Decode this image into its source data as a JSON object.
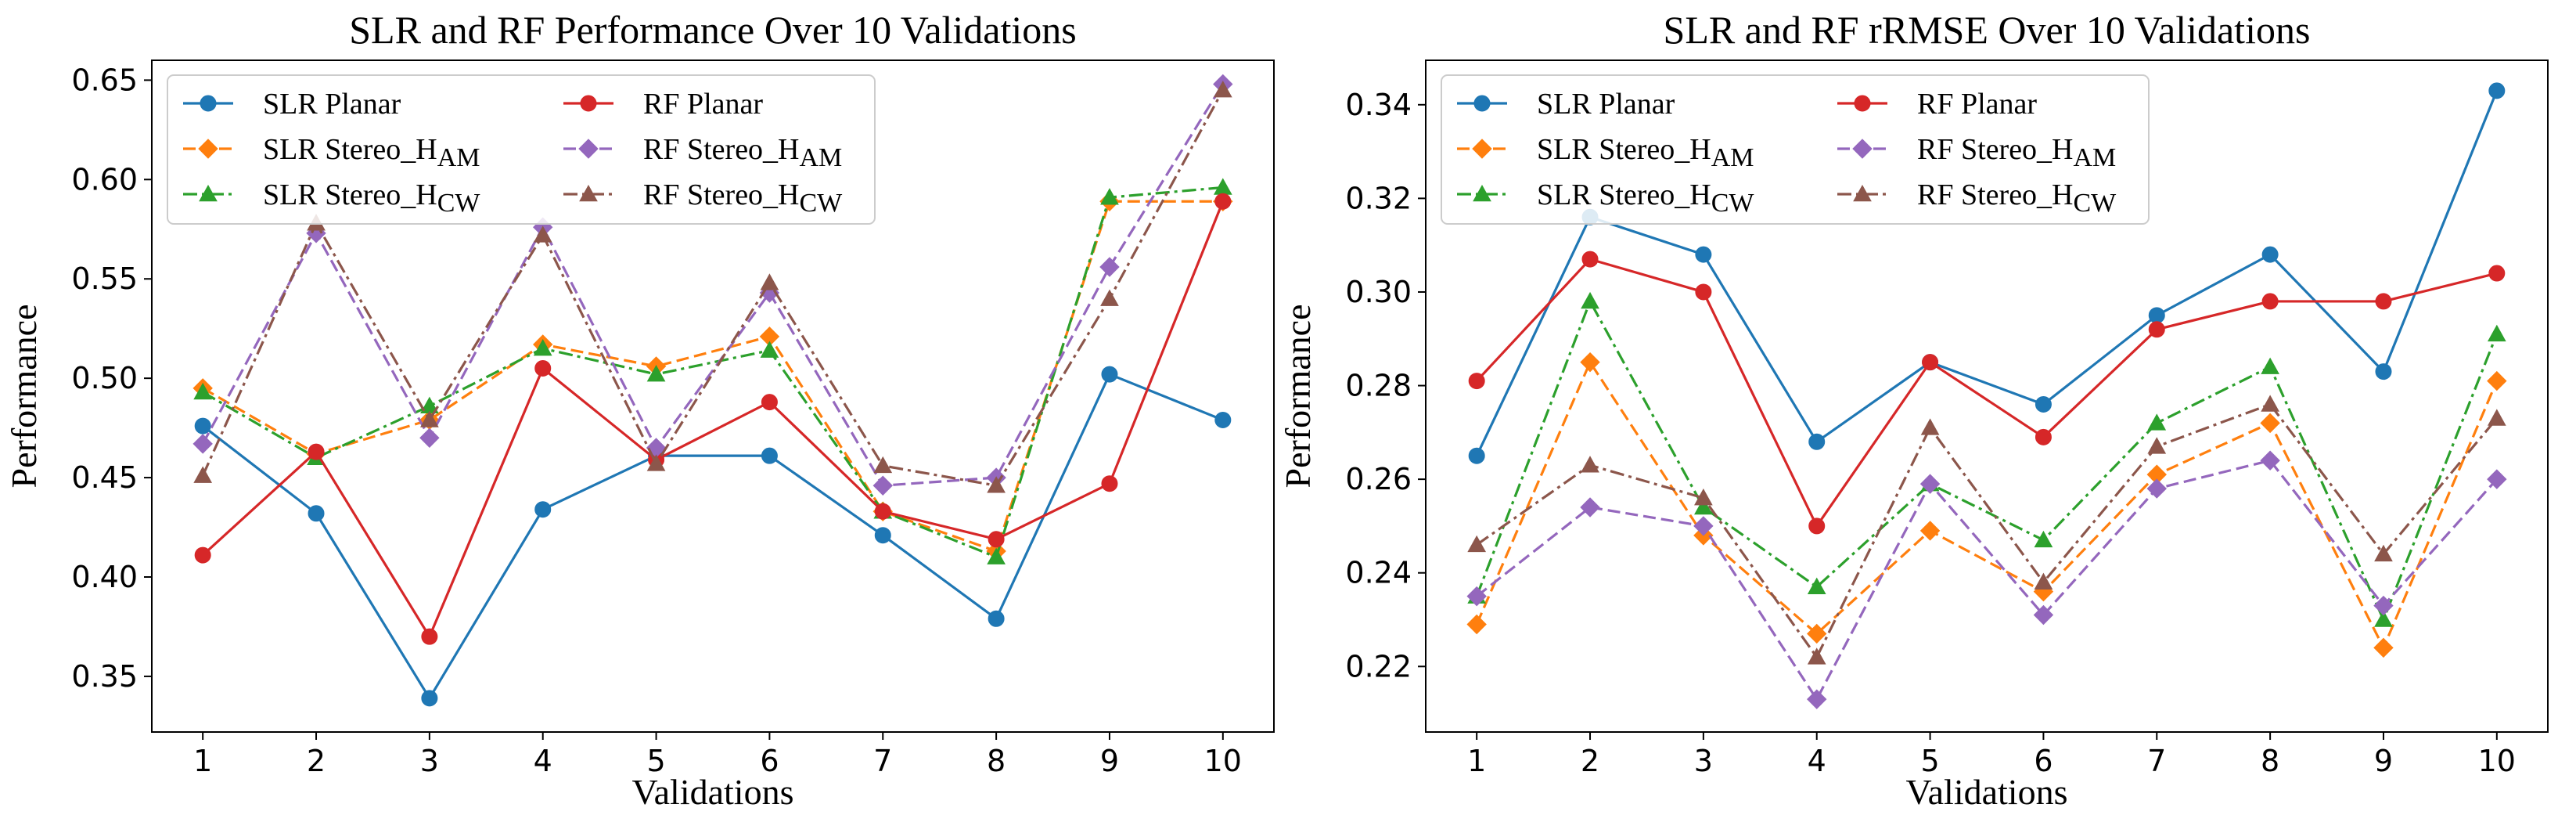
{
  "chart_data": [
    {
      "type": "line",
      "title": "SLR and RF Performance Over 10 Validations",
      "xlabel": "Validations",
      "ylabel": "Performance",
      "x": [
        1,
        2,
        3,
        4,
        5,
        6,
        7,
        8,
        9,
        10
      ],
      "xlim": [
        0.55,
        10.45
      ],
      "ylim": [
        0.322,
        0.66
      ],
      "yticks": [
        0.35,
        0.4,
        0.45,
        0.5,
        0.55,
        0.6,
        0.65
      ],
      "ytick_labels": [
        "0.35",
        "0.40",
        "0.45",
        "0.50",
        "0.55",
        "0.60",
        "0.65"
      ],
      "grid": false,
      "legend_position": "upper-left",
      "series": [
        {
          "name": "SLR Planar",
          "label_main": "SLR Planar",
          "label_sub": "",
          "color": "#1f77b4",
          "dash": "solid",
          "marker": "circle",
          "values": [
            0.476,
            0.432,
            0.339,
            0.434,
            0.461,
            0.461,
            0.421,
            0.379,
            0.502,
            0.479
          ]
        },
        {
          "name": "SLR Stereo_HAM",
          "label_main": "SLR Stereo_H",
          "label_sub": "AM",
          "color": "#ff7f0e",
          "dash": "dashed",
          "marker": "diamond",
          "values": [
            0.495,
            0.462,
            0.479,
            0.517,
            0.506,
            0.521,
            0.433,
            0.413,
            0.589,
            0.589
          ]
        },
        {
          "name": "SLR Stereo_HCW",
          "label_main": "SLR Stereo_H",
          "label_sub": "CW",
          "color": "#2ca02c",
          "dash": "dashdot",
          "marker": "triangle",
          "values": [
            0.493,
            0.46,
            0.486,
            0.515,
            0.502,
            0.514,
            0.433,
            0.41,
            0.591,
            0.596
          ]
        },
        {
          "name": "RF Planar",
          "label_main": "RF Planar",
          "label_sub": "",
          "color": "#d62728",
          "dash": "solid",
          "marker": "circle",
          "values": [
            0.411,
            0.463,
            0.37,
            0.505,
            0.459,
            0.488,
            0.433,
            0.419,
            0.447,
            0.589
          ]
        },
        {
          "name": "RF Stereo_HAM",
          "label_main": "RF Stereo_H",
          "label_sub": "AM",
          "color": "#9467bd",
          "dash": "dashed",
          "marker": "diamond",
          "values": [
            0.467,
            0.573,
            0.47,
            0.576,
            0.465,
            0.543,
            0.446,
            0.45,
            0.556,
            0.648
          ]
        },
        {
          "name": "RF Stereo_HCW",
          "label_main": "RF Stereo_H",
          "label_sub": "CW",
          "color": "#8c564b",
          "dash": "dashdot",
          "marker": "triangle",
          "values": [
            0.451,
            0.578,
            0.479,
            0.572,
            0.457,
            0.548,
            0.456,
            0.446,
            0.54,
            0.645
          ]
        }
      ]
    },
    {
      "type": "line",
      "title": "SLR and RF rRMSE Over 10 Validations",
      "xlabel": "Validations",
      "ylabel": "Performance",
      "x": [
        1,
        2,
        3,
        4,
        5,
        6,
        7,
        8,
        9,
        10
      ],
      "xlim": [
        0.55,
        10.45
      ],
      "ylim": [
        0.206,
        0.3495
      ],
      "yticks": [
        0.22,
        0.24,
        0.26,
        0.28,
        0.3,
        0.32,
        0.34
      ],
      "ytick_labels": [
        "0.22",
        "0.24",
        "0.26",
        "0.28",
        "0.30",
        "0.32",
        "0.34"
      ],
      "grid": false,
      "legend_position": "upper-left",
      "series": [
        {
          "name": "SLR Planar",
          "label_main": "SLR Planar",
          "label_sub": "",
          "color": "#1f77b4",
          "dash": "solid",
          "marker": "circle",
          "values": [
            0.265,
            0.316,
            0.308,
            0.268,
            0.285,
            0.276,
            0.295,
            0.308,
            0.283,
            0.343
          ]
        },
        {
          "name": "SLR Stereo_HAM",
          "label_main": "SLR Stereo_H",
          "label_sub": "AM",
          "color": "#ff7f0e",
          "dash": "dashed",
          "marker": "diamond",
          "values": [
            0.229,
            0.285,
            0.248,
            0.227,
            0.249,
            0.236,
            0.261,
            0.272,
            0.224,
            0.281
          ]
        },
        {
          "name": "SLR Stereo_HCW",
          "label_main": "SLR Stereo_H",
          "label_sub": "CW",
          "color": "#2ca02c",
          "dash": "dashdot",
          "marker": "triangle",
          "values": [
            0.235,
            0.298,
            0.254,
            0.237,
            0.259,
            0.247,
            0.272,
            0.284,
            0.23,
            0.291
          ]
        },
        {
          "name": "RF Planar",
          "label_main": "RF Planar",
          "label_sub": "",
          "color": "#d62728",
          "dash": "solid",
          "marker": "circle",
          "values": [
            0.281,
            0.307,
            0.3,
            0.25,
            0.285,
            0.269,
            0.292,
            0.298,
            0.298,
            0.304
          ]
        },
        {
          "name": "RF Stereo_HAM",
          "label_main": "RF Stereo_H",
          "label_sub": "AM",
          "color": "#9467bd",
          "dash": "dashed",
          "marker": "diamond",
          "values": [
            0.235,
            0.254,
            0.25,
            0.213,
            0.259,
            0.231,
            0.258,
            0.264,
            0.233,
            0.26
          ]
        },
        {
          "name": "RF Stereo_HCW",
          "label_main": "RF Stereo_H",
          "label_sub": "CW",
          "color": "#8c564b",
          "dash": "dashdot",
          "marker": "triangle",
          "values": [
            0.246,
            0.263,
            0.256,
            0.222,
            0.271,
            0.238,
            0.267,
            0.276,
            0.244,
            0.273
          ]
        }
      ]
    }
  ]
}
